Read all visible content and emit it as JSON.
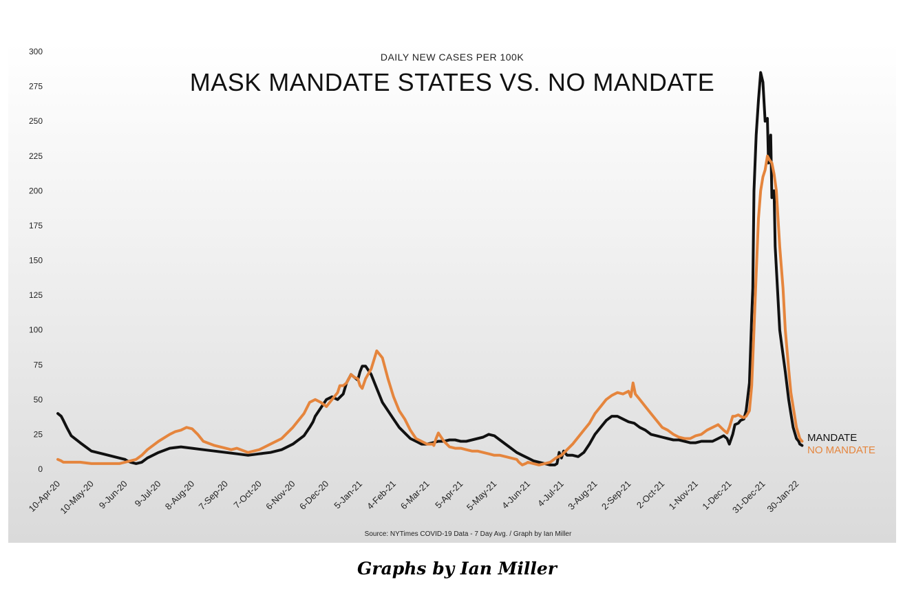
{
  "caption": "Graphs by Ian Miller",
  "chart_data": {
    "type": "line",
    "subtitle": "DAILY NEW CASES PER 100K",
    "title": "MASK MANDATE STATES VS. NO MANDATE",
    "source": "Source: NYTimes COVID-19 Data - 7 Day Avg. / Graph by Ian Miller",
    "ylim": [
      0,
      300
    ],
    "yticks": [
      0,
      25,
      50,
      75,
      100,
      125,
      150,
      175,
      200,
      225,
      250,
      275,
      300
    ],
    "xlim": [
      0,
      666
    ],
    "x_unit": "days since 10-Apr-20",
    "xtick_labels": [
      "10-Apr-20",
      "10-May-20",
      "9-Jun-20",
      "9-Jul-20",
      "8-Aug-20",
      "7-Sep-20",
      "7-Oct-20",
      "6-Nov-20",
      "6-Dec-20",
      "5-Jan-21",
      "4-Feb-21",
      "6-Mar-21",
      "5-Apr-21",
      "5-May-21",
      "4-Jun-21",
      "4-Jul-21",
      "3-Aug-21",
      "2-Sep-21",
      "2-Oct-21",
      "1-Nov-21",
      "1-Dec-21",
      "31-Dec-21",
      "30-Jan-22"
    ],
    "xtick_values": [
      0,
      30,
      60,
      90,
      120,
      150,
      180,
      210,
      240,
      270,
      300,
      330,
      360,
      390,
      420,
      450,
      480,
      510,
      540,
      570,
      600,
      630,
      660
    ],
    "series": [
      {
        "name": "MANDATE",
        "color": "#111111",
        "x": [
          0,
          3,
          5,
          8,
          12,
          20,
          30,
          40,
          55,
          60,
          62,
          65,
          70,
          75,
          80,
          90,
          100,
          110,
          120,
          130,
          140,
          150,
          160,
          170,
          180,
          190,
          200,
          210,
          220,
          225,
          228,
          230,
          235,
          240,
          245,
          250,
          255,
          258,
          262,
          265,
          268,
          270,
          272,
          275,
          280,
          285,
          290,
          295,
          300,
          305,
          310,
          315,
          320,
          325,
          330,
          335,
          340,
          345,
          350,
          355,
          360,
          365,
          370,
          375,
          380,
          385,
          390,
          395,
          400,
          405,
          410,
          415,
          420,
          425,
          430,
          435,
          440,
          442,
          444,
          446,
          448,
          450,
          452,
          455,
          460,
          465,
          470,
          475,
          480,
          485,
          490,
          495,
          500,
          505,
          510,
          515,
          520,
          525,
          530,
          535,
          540,
          545,
          550,
          555,
          560,
          565,
          570,
          575,
          580,
          585,
          590,
          595,
          598,
          600,
          603,
          605,
          608,
          610,
          613,
          615,
          618,
          620,
          621,
          622,
          624,
          626,
          628,
          630,
          632,
          634,
          635,
          637,
          638,
          640,
          641,
          643,
          645,
          647,
          650,
          653,
          655,
          657,
          660,
          662,
          663,
          665
        ],
        "y": [
          40,
          38,
          35,
          30,
          24,
          19,
          13,
          11,
          8,
          7,
          6,
          5,
          4,
          5,
          8,
          12,
          15,
          16,
          15,
          14,
          13,
          12,
          11,
          10,
          11,
          12,
          14,
          18,
          24,
          30,
          34,
          38,
          44,
          50,
          52,
          50,
          54,
          62,
          68,
          66,
          64,
          70,
          74,
          74,
          68,
          58,
          48,
          42,
          36,
          30,
          26,
          22,
          20,
          18,
          18,
          19,
          20,
          20,
          21,
          21,
          20,
          20,
          21,
          22,
          23,
          25,
          24,
          21,
          18,
          15,
          12,
          10,
          8,
          6,
          5,
          4,
          3,
          3,
          3,
          4,
          12,
          8,
          13,
          10,
          10,
          9,
          12,
          18,
          25,
          30,
          35,
          38,
          38,
          36,
          34,
          33,
          30,
          28,
          25,
          24,
          23,
          22,
          21,
          21,
          20,
          19,
          19,
          20,
          20,
          20,
          22,
          24,
          22,
          18,
          25,
          32,
          33,
          35,
          36,
          42,
          62,
          110,
          130,
          200,
          240,
          265,
          285,
          278,
          250,
          252,
          220,
          240,
          195,
          200,
          160,
          130,
          100,
          88,
          70,
          50,
          40,
          30,
          22,
          20,
          18,
          17
        ]
      },
      {
        "name": "NO MANDATE",
        "color": "#e5853d",
        "x": [
          0,
          3,
          5,
          10,
          20,
          30,
          40,
          55,
          60,
          70,
          75,
          80,
          90,
          100,
          105,
          110,
          115,
          120,
          125,
          130,
          140,
          150,
          155,
          160,
          170,
          180,
          190,
          200,
          210,
          220,
          225,
          230,
          235,
          240,
          245,
          250,
          252,
          255,
          258,
          262,
          265,
          268,
          270,
          272,
          275,
          280,
          285,
          290,
          295,
          300,
          305,
          310,
          315,
          320,
          325,
          330,
          335,
          336,
          338,
          340,
          345,
          350,
          355,
          360,
          365,
          370,
          375,
          380,
          385,
          390,
          395,
          400,
          405,
          410,
          412,
          415,
          418,
          420,
          425,
          430,
          435,
          440,
          445,
          450,
          455,
          460,
          465,
          470,
          475,
          480,
          485,
          490,
          495,
          500,
          505,
          510,
          512,
          514,
          516,
          520,
          525,
          530,
          535,
          540,
          545,
          550,
          555,
          560,
          565,
          570,
          575,
          580,
          585,
          590,
          595,
          598,
          600,
          603,
          605,
          608,
          610,
          613,
          615,
          618,
          620,
          622,
          624,
          626,
          628,
          630,
          632,
          634,
          636,
          638,
          640,
          642,
          645,
          648,
          650,
          653,
          655,
          658,
          660,
          663,
          665
        ],
        "y": [
          7,
          6,
          5,
          5,
          5,
          4,
          4,
          4,
          5,
          7,
          10,
          14,
          20,
          25,
          27,
          28,
          30,
          29,
          25,
          20,
          17,
          15,
          14,
          15,
          12,
          14,
          18,
          22,
          30,
          40,
          48,
          50,
          48,
          45,
          50,
          55,
          60,
          60,
          62,
          68,
          66,
          65,
          60,
          58,
          65,
          72,
          85,
          80,
          65,
          52,
          42,
          36,
          28,
          22,
          20,
          18,
          18,
          17,
          22,
          26,
          20,
          16,
          15,
          15,
          14,
          13,
          13,
          12,
          11,
          10,
          10,
          9,
          8,
          7,
          5,
          3,
          4,
          5,
          4,
          3,
          4,
          5,
          8,
          10,
          14,
          18,
          23,
          28,
          33,
          40,
          45,
          50,
          53,
          55,
          54,
          56,
          52,
          62,
          54,
          50,
          45,
          40,
          35,
          30,
          28,
          25,
          23,
          22,
          22,
          24,
          25,
          28,
          30,
          32,
          28,
          26,
          30,
          38,
          38,
          39,
          38,
          37,
          38,
          42,
          60,
          100,
          140,
          180,
          200,
          210,
          215,
          225,
          222,
          220,
          212,
          200,
          160,
          130,
          100,
          72,
          55,
          40,
          30,
          22,
          20
        ]
      }
    ]
  }
}
